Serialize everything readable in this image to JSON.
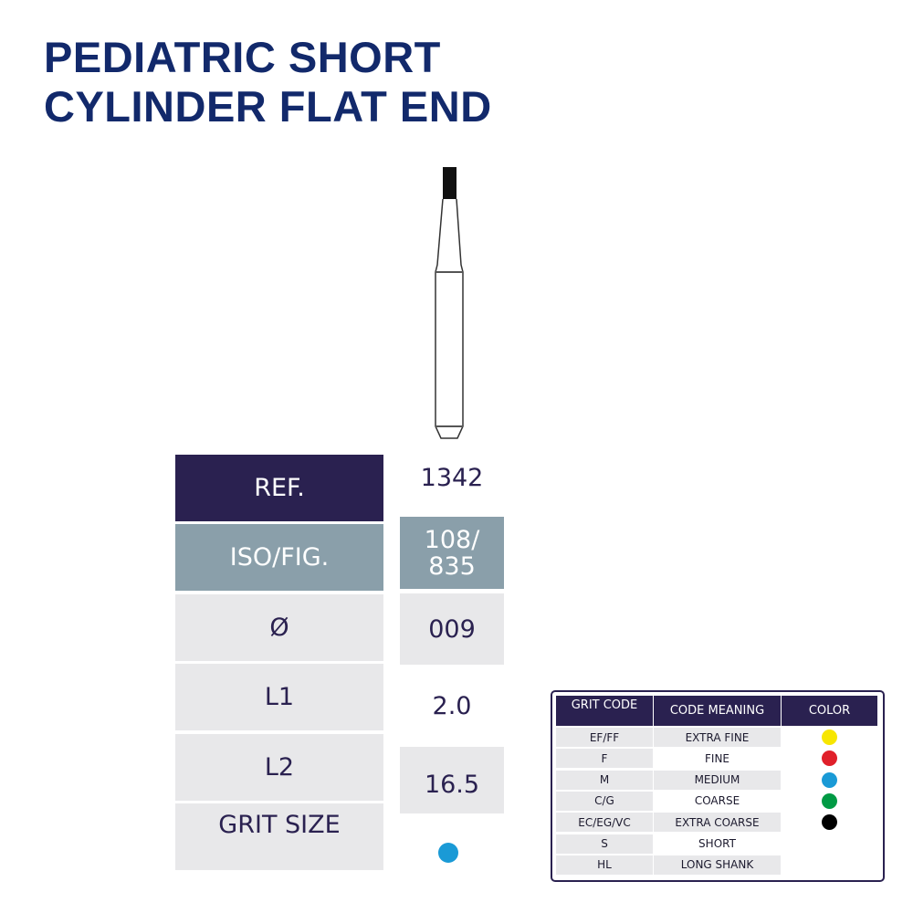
{
  "title": {
    "line1": "PEDIATRIC SHORT",
    "line2": "CYLINDER FLAT END"
  },
  "spec": {
    "ref_label": "REF.",
    "ref_value": "1342",
    "iso_label": "ISO/FIG.",
    "iso_value_1": "108/",
    "iso_value_2": "835",
    "diameter_label": "Ø",
    "diameter_value": "009",
    "l1_label": "L1",
    "l1_value": "2.0",
    "l2_label": "L2",
    "l2_value": "16.5",
    "grit_label": "GRIT SIZE",
    "grit_color": "#1a9ad6"
  },
  "colors": {
    "navy": "#2a2150",
    "steel": "#8a9faa",
    "light": "#e8e8ea",
    "title": "#12296b"
  },
  "grit_table": {
    "headers": [
      "GRIT CODE",
      "CODE MEANING",
      "COLOR"
    ],
    "rows": [
      {
        "code": "EF/FF",
        "meaning": "EXTRA FINE",
        "color": "#f7e600"
      },
      {
        "code": "F",
        "meaning": "FINE",
        "color": "#e0202a"
      },
      {
        "code": "M",
        "meaning": "MEDIUM",
        "color": "#1a9ad6"
      },
      {
        "code": "C/G",
        "meaning": "COARSE",
        "color": "#009a44"
      },
      {
        "code": "EC/EG/VC",
        "meaning": "EXTRA COARSE",
        "color": "#000000"
      },
      {
        "code": "S",
        "meaning": "SHORT",
        "color": null
      },
      {
        "code": "HL",
        "meaning": "LONG SHANK",
        "color": null
      }
    ]
  }
}
